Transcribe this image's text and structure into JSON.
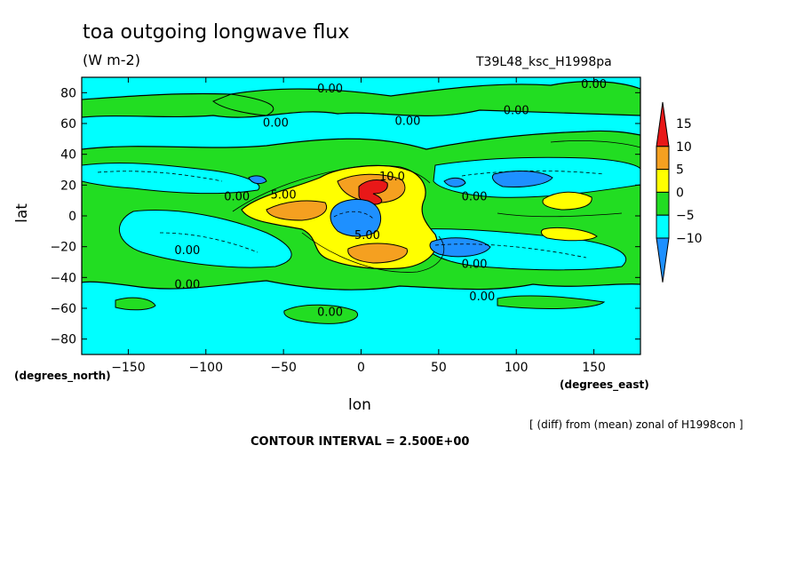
{
  "chart_data": {
    "type": "contour",
    "title": "toa outgoing longwave flux",
    "units": "(W m-2)",
    "run_label": "T39L48_ksc_H1998pa",
    "xlabel": "lon",
    "ylabel": "lat",
    "x_unit_label": "(degrees_east)",
    "y_unit_label": "(degrees_north)",
    "xlim": [
      -180,
      180
    ],
    "ylim": [
      -90,
      90
    ],
    "x_ticks": [
      -150,
      -100,
      -50,
      0,
      50,
      100,
      150
    ],
    "y_ticks": [
      -80,
      -60,
      -40,
      -20,
      0,
      20,
      40,
      60,
      80
    ],
    "contour_interval_label": "CONTOUR INTERVAL = 2.500E+00",
    "note": "[ (diff) from (mean) zonal of H1998con ]",
    "colorbar": {
      "levels": [
        15,
        10,
        5,
        0,
        -5,
        -10
      ],
      "colors": [
        "#e81818",
        "#f5a020",
        "#ffff00",
        "#22dd22",
        "#00ffff",
        "#1e90ff"
      ]
    },
    "contour_labels": [
      {
        "text": "0.00",
        "lon": -20,
        "lat": 83
      },
      {
        "text": "0.00",
        "lon": 150,
        "lat": 86
      },
      {
        "text": "0.00",
        "lon": 100,
        "lat": 69
      },
      {
        "text": "0.00",
        "lon": -55,
        "lat": 61
      },
      {
        "text": "0.00",
        "lon": 30,
        "lat": 62
      },
      {
        "text": "10.0",
        "lon": 20,
        "lat": 26
      },
      {
        "text": "0.00",
        "lon": -80,
        "lat": 13
      },
      {
        "text": "5.00",
        "lon": -50,
        "lat": 14
      },
      {
        "text": "0.00",
        "lon": 73,
        "lat": 13
      },
      {
        "text": "5.00",
        "lon": 4,
        "lat": -12
      },
      {
        "text": "0.00",
        "lon": -112,
        "lat": -22
      },
      {
        "text": "0.00",
        "lon": 73,
        "lat": -31
      },
      {
        "text": "0.00",
        "lon": -112,
        "lat": -44
      },
      {
        "text": "0.00",
        "lon": 78,
        "lat": -52
      },
      {
        "text": "0.00",
        "lon": -20,
        "lat": -62
      }
    ]
  }
}
